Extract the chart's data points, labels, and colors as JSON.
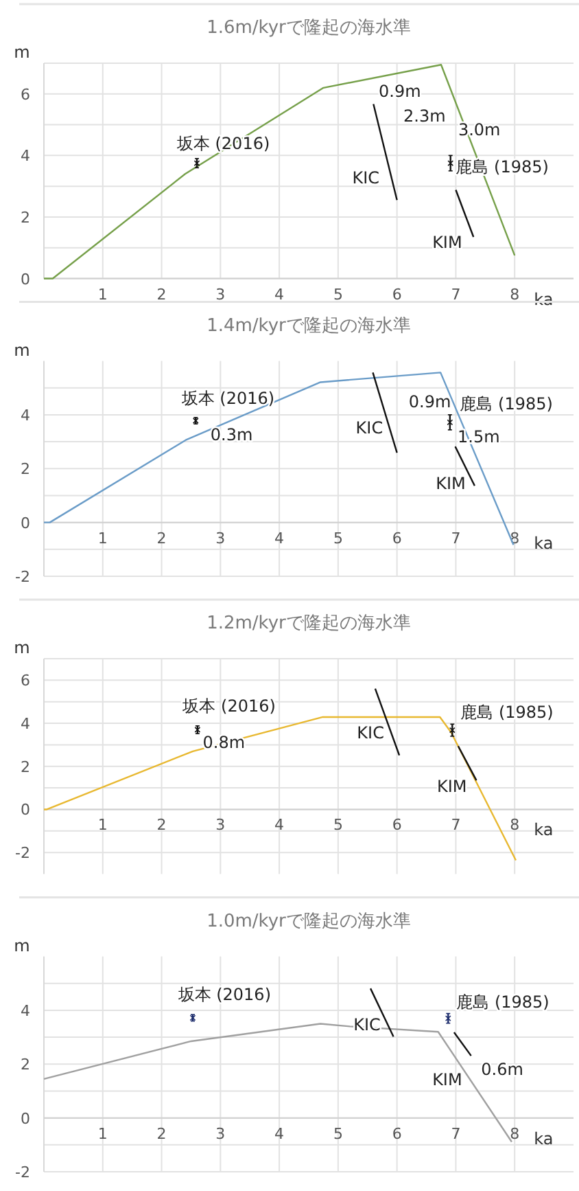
{
  "chart_data": [
    {
      "type": "line",
      "title": "1.6m/kyrで隆起の海水準",
      "xlabel": "ka",
      "ylabel": "m",
      "xlim": [
        0,
        9
      ],
      "ylim": [
        0,
        7
      ],
      "xticks": [
        1,
        2,
        3,
        4,
        5,
        6,
        7,
        8
      ],
      "yticks": [
        0,
        {
          "value": 1,
          "label": null
        },
        2,
        {
          "value": 3,
          "label": null
        },
        4,
        {
          "value": 5,
          "label": null
        },
        6,
        {
          "value": 7,
          "label": null
        }
      ],
      "grid": true,
      "series": [
        {
          "color": "#76a04a",
          "x": [
            0,
            0.15,
            2.4,
            4.75,
            6.75,
            8
          ],
          "values": [
            0,
            0,
            3.4,
            6.2,
            6.95,
            0.75
          ]
        },
        {
          "name": "KIC",
          "color": "#111111",
          "x": [
            5.6,
            6.0
          ],
          "values": [
            5.67,
            2.55
          ]
        },
        {
          "name": "KIM",
          "color": "#111111",
          "x": [
            7.0,
            7.3
          ],
          "values": [
            2.88,
            1.35
          ]
        },
        {
          "name": "坂本 (2016)",
          "type": "scatter",
          "color": "#111111",
          "marker": "cross",
          "x": [
            2.6
          ],
          "values": [
            3.75
          ],
          "errors": [
            0.15
          ]
        },
        {
          "name": "鹿島 (1985)",
          "type": "scatter",
          "color": "#111111",
          "marker": "cross",
          "x": [
            6.91
          ],
          "values": [
            3.75
          ],
          "errors": [
            0.25
          ]
        }
      ],
      "annotations": [
        "0.9m",
        "2.3m",
        "3.0m"
      ]
    },
    {
      "type": "line",
      "title": "1.4m/kyrで隆起の海水準",
      "xlabel": "ka",
      "ylabel": "m",
      "xlim": [
        0,
        9
      ],
      "ylim": [
        -2,
        6
      ],
      "xticks": [
        1,
        2,
        3,
        4,
        5,
        6,
        7,
        8
      ],
      "yticks": [
        -2,
        {
          "value": -1,
          "label": null
        },
        0,
        {
          "value": 1,
          "label": null
        },
        2,
        {
          "value": 3,
          "label": null
        },
        4,
        {
          "value": 5,
          "label": null
        }
      ],
      "grid": true,
      "series": [
        {
          "color": "#6a9cc8",
          "x": [
            0,
            0.1,
            2.41,
            4.7,
            6.74,
            7.98
          ],
          "values": [
            0,
            0,
            3.06,
            5.21,
            5.57,
            -0.83
          ]
        },
        {
          "name": "KIC",
          "color": "#111111",
          "x": [
            5.59,
            6.0
          ],
          "values": [
            5.57,
            2.59
          ]
        },
        {
          "name": "KIM",
          "color": "#111111",
          "x": [
            6.99,
            7.32
          ],
          "values": [
            2.82,
            1.36
          ]
        },
        {
          "name": "坂本 (2016)",
          "type": "scatter",
          "color": "#111111",
          "marker": "cross",
          "x": [
            2.58
          ],
          "values": [
            3.78
          ],
          "errors": [
            0.12
          ]
        },
        {
          "name": "鹿島 (1985)",
          "type": "scatter",
          "color": "#111111",
          "marker": "cross",
          "x": [
            6.9
          ],
          "values": [
            3.72
          ],
          "errors": [
            0.28
          ]
        }
      ],
      "annotations": [
        "0.3m",
        "0.9m",
        "1.5m"
      ]
    },
    {
      "type": "line",
      "title": "1.2m/kyrで隆起の海水準",
      "xlabel": "ka",
      "ylabel": "m",
      "xlim": [
        0,
        9
      ],
      "ylim": [
        -3,
        7
      ],
      "xticks": [
        1,
        2,
        3,
        4,
        5,
        6,
        7,
        8
      ],
      "yticks": [
        -2,
        {
          "value": -1,
          "label": null
        },
        0,
        {
          "value": 1,
          "label": null
        },
        2,
        {
          "value": 3,
          "label": null
        },
        4,
        {
          "value": 5,
          "label": null
        },
        6,
        {
          "value": 7,
          "label": null
        }
      ],
      "grid": true,
      "series": [
        {
          "color": "#e8b830",
          "x": [
            0,
            0.05,
            2.53,
            4.74,
            6.73,
            6.92,
            8.02
          ],
          "values": [
            0,
            0,
            2.7,
            4.29,
            4.29,
            3.58,
            -2.36
          ]
        },
        {
          "name": "KIC",
          "color": "#111111",
          "x": [
            5.63,
            6.04
          ],
          "values": [
            5.61,
            2.51
          ]
        },
        {
          "name": "KIM",
          "color": "#111111",
          "x": [
            7.04,
            7.35
          ],
          "values": [
            2.94,
            1.35
          ]
        },
        {
          "name": "坂本 (2016)",
          "type": "scatter",
          "color": "#111111",
          "marker": "cross",
          "x": [
            2.61
          ],
          "values": [
            3.7
          ],
          "errors": [
            0.18
          ]
        },
        {
          "name": "鹿島 (1985)",
          "type": "scatter",
          "color": "#111111",
          "marker": "cross",
          "x": [
            6.94
          ],
          "values": [
            3.68
          ],
          "errors": [
            0.28
          ]
        }
      ],
      "annotations": [
        "0.8m"
      ]
    },
    {
      "type": "line",
      "title": "1.0m/kyrで隆起の海水準",
      "xlabel": "ka",
      "ylabel": "m",
      "xlim": [
        0,
        9
      ],
      "ylim": [
        -2,
        6
      ],
      "xticks": [
        1,
        2,
        3,
        4,
        5,
        6,
        7,
        8
      ],
      "yticks": [
        -2,
        {
          "value": -1,
          "label": null
        },
        0,
        {
          "value": 1,
          "label": null
        },
        2,
        {
          "value": 3,
          "label": null
        },
        4,
        {
          "value": 5,
          "label": null
        }
      ],
      "grid": true,
      "series": [
        {
          "color": "#a0a0a0",
          "x": [
            0,
            2.5,
            4.7,
            5.2,
            6.7,
            7.95
          ],
          "values": [
            1.45,
            2.85,
            3.5,
            3.4,
            3.2,
            -0.89
          ]
        },
        {
          "name": "KIC",
          "color": "#111111",
          "x": [
            5.55,
            5.94
          ],
          "values": [
            4.81,
            3.02
          ]
        },
        {
          "name": "KIM",
          "color": "#111111",
          "x": [
            6.97,
            7.26
          ],
          "values": [
            3.18,
            2.31
          ]
        },
        {
          "name": "坂本 (2016)",
          "type": "scatter",
          "color": "#1a2a6a",
          "marker": "cross",
          "x": [
            2.53
          ],
          "values": [
            3.72
          ],
          "errors": [
            0.12
          ]
        },
        {
          "name": "鹿島 (1985)",
          "type": "scatter",
          "color": "#1a2a6a",
          "marker": "cross",
          "x": [
            6.87
          ],
          "values": [
            3.7
          ],
          "errors": [
            0.18
          ]
        }
      ],
      "annotations": [
        "0.6m"
      ]
    }
  ]
}
